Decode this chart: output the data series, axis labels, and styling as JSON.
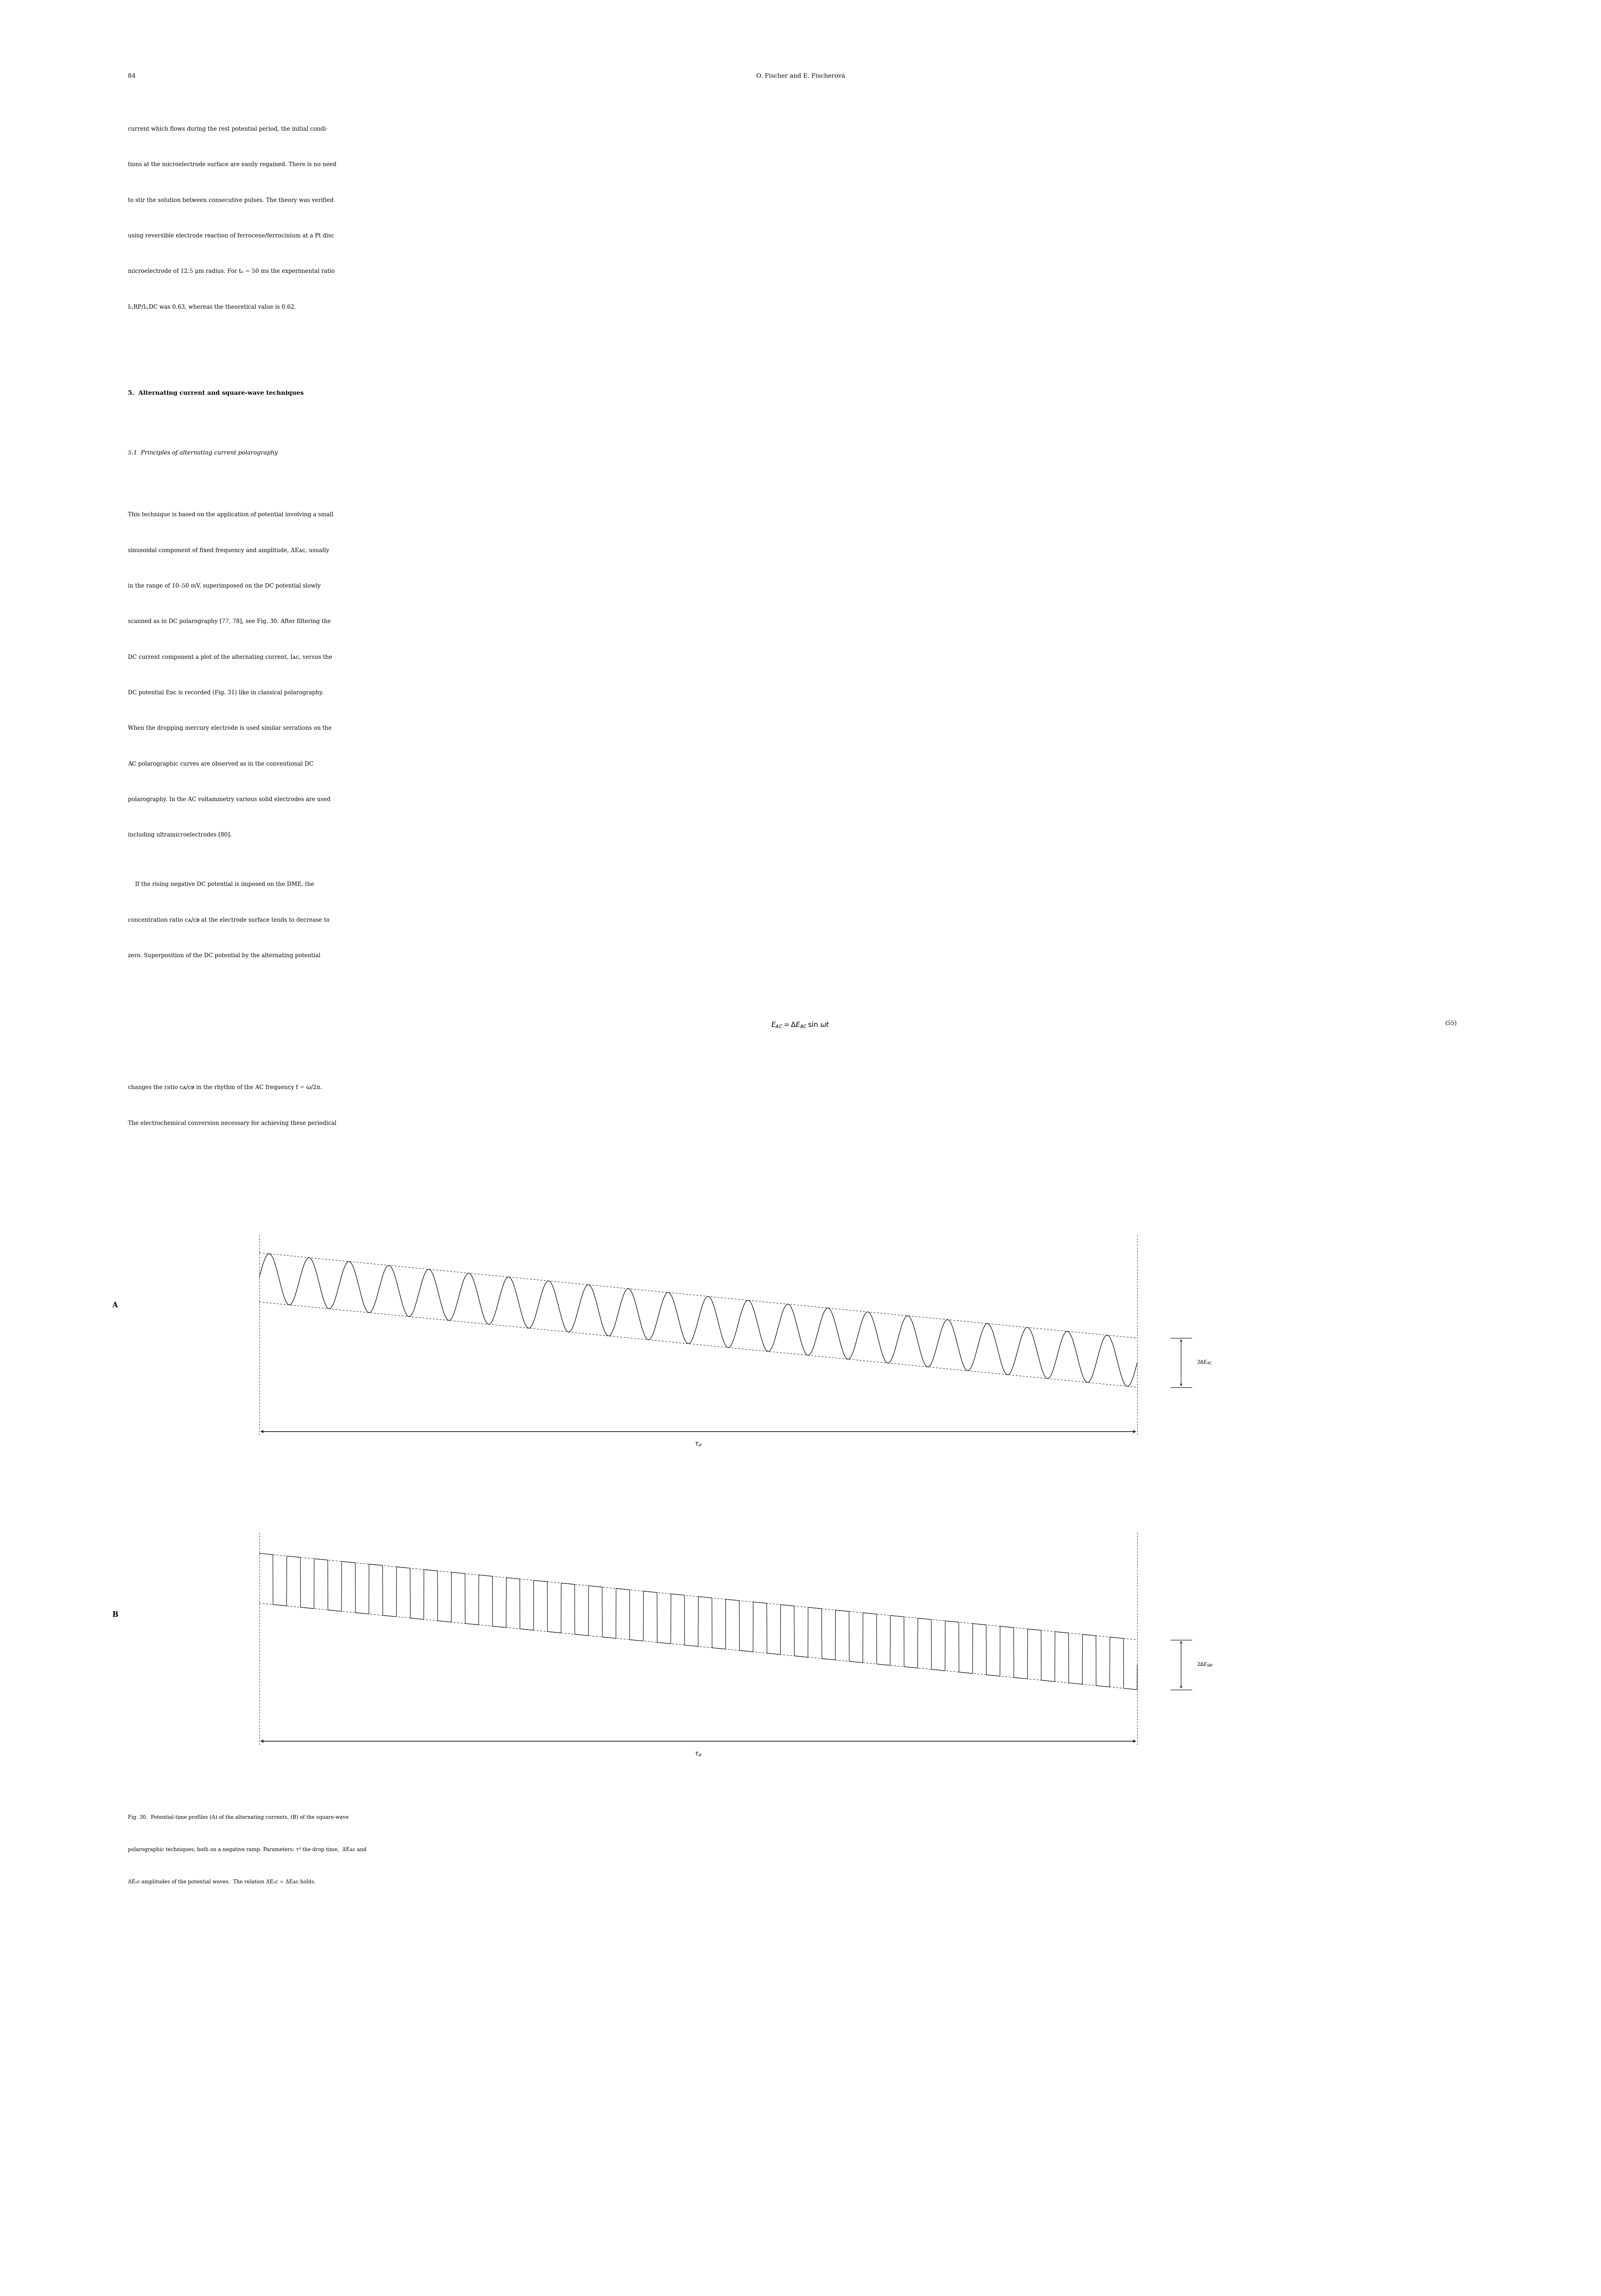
{
  "page_width": 40.18,
  "page_height": 57.64,
  "bg_color": "#ffffff",
  "text_color": "#000000",
  "page_number": "84",
  "header_right": "O. Fischer and E. Fischerová",
  "fig_label_A": "A",
  "fig_label_B": "B",
  "n_ac_cycles": 22,
  "n_sw_cycles": 32,
  "ac_amplitude": 0.15,
  "sw_amplitude": 0.15
}
